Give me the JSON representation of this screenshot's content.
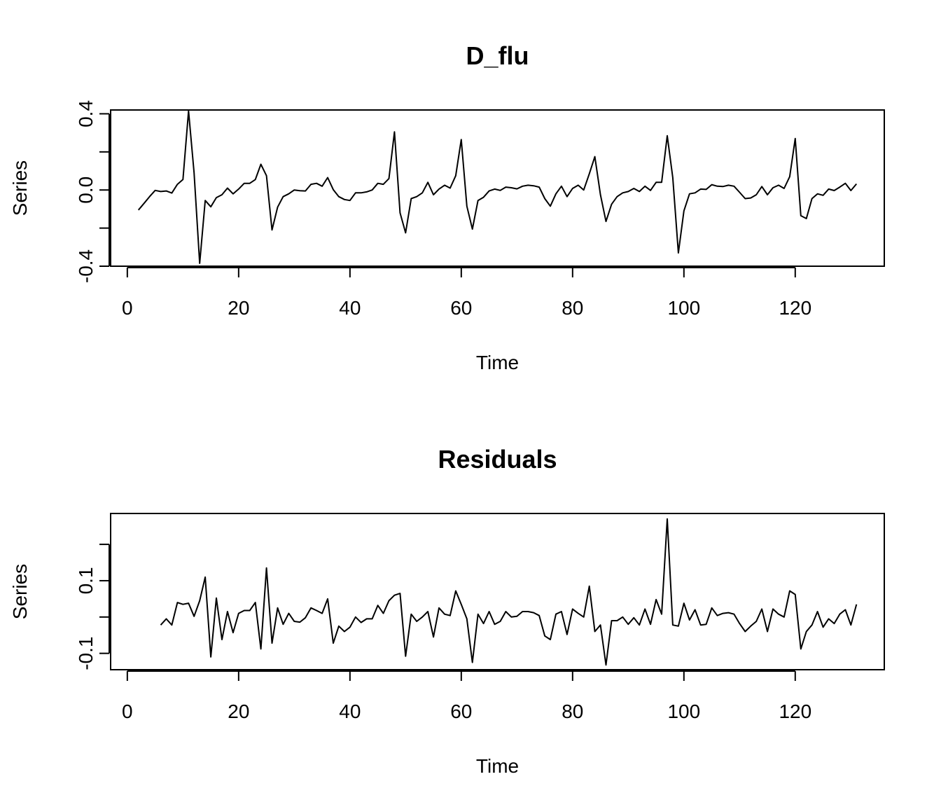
{
  "chart_data": [
    {
      "type": "line",
      "title": "D_flu",
      "xlabel": "Time",
      "ylabel": "Series",
      "xlim": [
        -3,
        136
      ],
      "ylim": [
        -0.4,
        0.42
      ],
      "x_ticks": [
        0,
        20,
        40,
        60,
        80,
        100,
        120
      ],
      "x_tick_labels": [
        "0",
        "20",
        "40",
        "60",
        "80",
        "100",
        "120"
      ],
      "y_ticks": [
        -0.4,
        -0.2,
        0.0,
        0.2,
        0.4
      ],
      "y_tick_labels": [
        "-0.4",
        "",
        "0.0",
        "",
        "0.4"
      ],
      "x_start": 2,
      "values": [
        -0.105,
        -0.07,
        -0.035,
        -0.002,
        -0.008,
        -0.005,
        -0.016,
        0.03,
        0.055,
        0.415,
        0.09,
        -0.385,
        -0.055,
        -0.088,
        -0.04,
        -0.025,
        0.01,
        -0.02,
        0.005,
        0.035,
        0.035,
        0.055,
        0.135,
        0.075,
        -0.21,
        -0.09,
        -0.035,
        -0.02,
        0.0,
        -0.004,
        -0.005,
        0.03,
        0.035,
        0.02,
        0.065,
        0.002,
        -0.035,
        -0.05,
        -0.055,
        -0.015,
        -0.015,
        -0.01,
        0.0,
        0.035,
        0.03,
        0.06,
        0.305,
        -0.12,
        -0.225,
        -0.045,
        -0.035,
        -0.015,
        0.04,
        -0.025,
        0.005,
        0.025,
        0.01,
        0.075,
        0.265,
        -0.085,
        -0.205,
        -0.055,
        -0.038,
        -0.005,
        0.005,
        -0.002,
        0.015,
        0.012,
        0.006,
        0.02,
        0.025,
        0.022,
        0.015,
        -0.045,
        -0.085,
        -0.02,
        0.02,
        -0.035,
        0.008,
        0.025,
        0.0,
        0.085,
        0.175,
        -0.025,
        -0.165,
        -0.075,
        -0.035,
        -0.015,
        -0.008,
        0.008,
        -0.008,
        0.02,
        -0.002,
        0.04,
        0.04,
        0.285,
        0.065,
        -0.33,
        -0.11,
        -0.02,
        -0.015,
        0.005,
        0.003,
        0.028,
        0.02,
        0.018,
        0.025,
        0.02,
        -0.012,
        -0.045,
        -0.042,
        -0.025,
        0.018,
        -0.025,
        0.012,
        0.025,
        0.008,
        0.07,
        0.27,
        -0.135,
        -0.15,
        -0.045,
        -0.02,
        -0.028,
        0.005,
        -0.003,
        0.015,
        0.035,
        -0.003,
        0.032
      ]
    },
    {
      "type": "line",
      "title": "Residuals",
      "xlabel": "Time",
      "ylabel": "Series",
      "xlim": [
        -3,
        136
      ],
      "ylim": [
        -0.145,
        0.285
      ],
      "x_ticks": [
        0,
        20,
        40,
        60,
        80,
        100,
        120
      ],
      "x_tick_labels": [
        "0",
        "20",
        "40",
        "60",
        "80",
        "100",
        "120"
      ],
      "y_ticks": [
        -0.1,
        0.0,
        0.1,
        0.2
      ],
      "y_tick_labels": [
        "-0.1",
        "",
        "0.1",
        ""
      ],
      "x_start": 6,
      "values": [
        -0.022,
        -0.005,
        -0.022,
        0.04,
        0.035,
        0.038,
        0.002,
        0.045,
        0.11,
        -0.11,
        0.052,
        -0.062,
        0.015,
        -0.043,
        0.01,
        0.018,
        0.018,
        0.04,
        -0.088,
        0.135,
        -0.072,
        0.025,
        -0.02,
        0.01,
        -0.012,
        -0.014,
        -0.002,
        0.025,
        0.018,
        0.01,
        0.05,
        -0.072,
        -0.025,
        -0.04,
        -0.028,
        0.0,
        -0.015,
        -0.005,
        -0.005,
        0.032,
        0.01,
        0.045,
        0.06,
        0.065,
        -0.108,
        0.008,
        -0.012,
        0.0,
        0.015,
        -0.055,
        0.025,
        0.008,
        0.004,
        0.072,
        0.035,
        -0.005,
        -0.125,
        0.008,
        -0.018,
        0.015,
        -0.02,
        -0.012,
        0.015,
        0.0,
        0.002,
        0.015,
        0.015,
        0.012,
        0.004,
        -0.052,
        -0.062,
        0.008,
        0.015,
        -0.048,
        0.022,
        0.01,
        0.0,
        0.085,
        -0.04,
        -0.022,
        -0.132,
        -0.01,
        -0.01,
        0.0,
        -0.02,
        -0.002,
        -0.022,
        0.022,
        -0.02,
        0.048,
        0.008,
        0.27,
        -0.022,
        -0.025,
        0.038,
        -0.008,
        0.02,
        -0.022,
        -0.02,
        0.025,
        0.004,
        0.01,
        0.012,
        0.008,
        -0.018,
        -0.04,
        -0.025,
        -0.012,
        0.022,
        -0.04,
        0.022,
        0.008,
        0.0,
        0.072,
        0.062,
        -0.088,
        -0.04,
        -0.022,
        0.015,
        -0.028,
        -0.005,
        -0.018,
        0.008,
        0.02,
        -0.022,
        0.035
      ]
    }
  ]
}
